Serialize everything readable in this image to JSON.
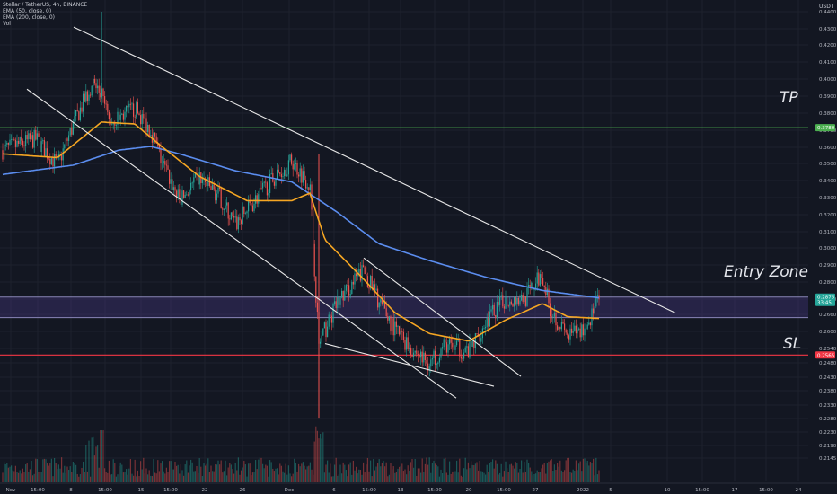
{
  "header": {
    "symbol_line": "Stellar / TetherUS, 4h, BINANCE",
    "indicators": [
      "EMA (50, close, 0)",
      "EMA (200, close, 0)",
      "Vol"
    ]
  },
  "currency": "USDT",
  "annotations": {
    "tp": "TP",
    "entry": "Entry Zone",
    "sl": "SL"
  },
  "price_labels": {
    "tp": {
      "value": "0.3780",
      "price": 0.378,
      "color": "#4caf50"
    },
    "current": {
      "value": "0.2875",
      "sub": "33:45",
      "price": 0.2875,
      "color": "#26a69a"
    },
    "sl": {
      "value": "0.2565",
      "price": 0.2565,
      "color": "#f23645"
    }
  },
  "chart_data": {
    "type": "candlestick",
    "title": "Stellar / TetherUS, 4h, BINANCE",
    "xlabel": "",
    "ylabel": "",
    "ylim": [
      0.2106,
      0.4444
    ],
    "y_ticks": [
      "0.4400",
      "0.4300",
      "0.4200",
      "0.4100",
      "0.4000",
      "0.3900",
      "0.3800",
      "0.3700",
      "0.3600",
      "0.3500",
      "0.3400",
      "0.3300",
      "0.3200",
      "0.3100",
      "0.3000",
      "0.2900",
      "0.2800",
      "0.2700",
      "0.2660",
      "0.2600",
      "0.2540",
      "0.2480",
      "0.2430",
      "0.2380",
      "0.2330",
      "0.2280",
      "0.2230",
      "0.2190",
      "0.2145"
    ],
    "x_ticks": [
      "Nov",
      "15:00",
      "8",
      "15:00",
      "15",
      "15:00",
      "22",
      "26",
      "Dec",
      "6",
      "15:00",
      "13",
      "15:00",
      "20",
      "15:00",
      "27",
      "2022",
      "5",
      "10",
      "15:00",
      "17",
      "15:00",
      "24"
    ],
    "close_path": [
      {
        "t": "Nov",
        "price": 0.366
      },
      {
        "t": "Nov 3",
        "price": 0.372
      },
      {
        "t": "Nov 5",
        "price": 0.358
      },
      {
        "t": "Nov 7",
        "price": 0.38
      },
      {
        "t": "Nov 8",
        "price": 0.402
      },
      {
        "t": "Nov 9",
        "price": 0.395
      },
      {
        "t": "Nov 10",
        "price": 0.381
      },
      {
        "t": "Nov 13",
        "price": 0.388
      },
      {
        "t": "Nov 15",
        "price": 0.377
      },
      {
        "t": "Nov 17",
        "price": 0.36
      },
      {
        "t": "Nov 19",
        "price": 0.339
      },
      {
        "t": "Nov 21",
        "price": 0.351
      },
      {
        "t": "Nov 23",
        "price": 0.342
      },
      {
        "t": "Nov 25",
        "price": 0.326
      },
      {
        "t": "Nov 27",
        "price": 0.34
      },
      {
        "t": "Nov 29",
        "price": 0.351
      },
      {
        "t": "Dec 1",
        "price": 0.36
      },
      {
        "t": "Dec 3",
        "price": 0.348
      },
      {
        "t": "Dec 4",
        "price": 0.262
      },
      {
        "t": "Dec 6",
        "price": 0.284
      },
      {
        "t": "Dec 8",
        "price": 0.302
      },
      {
        "t": "Dec 10",
        "price": 0.285
      },
      {
        "t": "Dec 12",
        "price": 0.27
      },
      {
        "t": "Dec 14",
        "price": 0.259
      },
      {
        "t": "Dec 16",
        "price": 0.252
      },
      {
        "t": "Dec 18",
        "price": 0.262
      },
      {
        "t": "Dec 20",
        "price": 0.258
      },
      {
        "t": "Dec 22",
        "price": 0.275
      },
      {
        "t": "Dec 24",
        "price": 0.286
      },
      {
        "t": "Dec 26",
        "price": 0.287
      },
      {
        "t": "Dec 28",
        "price": 0.3
      },
      {
        "t": "Dec 29",
        "price": 0.282
      },
      {
        "t": "Dec 31",
        "price": 0.266
      },
      {
        "t": "Jan 2",
        "price": 0.271
      },
      {
        "t": "Jan 3",
        "price": 0.2875
      }
    ],
    "ema50_path": [
      {
        "t": "Nov",
        "price": 0.364
      },
      {
        "t": "Nov 5",
        "price": 0.362
      },
      {
        "t": "Nov 9",
        "price": 0.381
      },
      {
        "t": "Nov 13",
        "price": 0.38
      },
      {
        "t": "Nov 17",
        "price": 0.368
      },
      {
        "t": "Nov 21",
        "price": 0.352
      },
      {
        "t": "Nov 26",
        "price": 0.339
      },
      {
        "t": "Dec 1",
        "price": 0.339
      },
      {
        "t": "Dec 3",
        "price": 0.343
      },
      {
        "t": "Dec 5",
        "price": 0.318
      },
      {
        "t": "Dec 8",
        "price": 0.297
      },
      {
        "t": "Dec 12",
        "price": 0.279
      },
      {
        "t": "Dec 16",
        "price": 0.268
      },
      {
        "t": "Dec 20",
        "price": 0.264
      },
      {
        "t": "Dec 24",
        "price": 0.275
      },
      {
        "t": "Dec 28",
        "price": 0.284
      },
      {
        "t": "Dec 31",
        "price": 0.277
      },
      {
        "t": "Jan 3",
        "price": 0.276
      }
    ],
    "ema200_path": [
      {
        "t": "Nov",
        "price": 0.353
      },
      {
        "t": "Nov 7",
        "price": 0.358
      },
      {
        "t": "Nov 11",
        "price": 0.366
      },
      {
        "t": "Nov 15",
        "price": 0.368
      },
      {
        "t": "Nov 19",
        "price": 0.364
      },
      {
        "t": "Nov 25",
        "price": 0.355
      },
      {
        "t": "Dec 1",
        "price": 0.349
      },
      {
        "t": "Dec 6",
        "price": 0.333
      },
      {
        "t": "Dec 10",
        "price": 0.316
      },
      {
        "t": "Dec 16",
        "price": 0.307
      },
      {
        "t": "Dec 22",
        "price": 0.298
      },
      {
        "t": "Dec 28",
        "price": 0.291
      },
      {
        "t": "Jan 3",
        "price": 0.287
      }
    ],
    "trendlines": [
      {
        "name": "upper-wedge",
        "from": {
          "t": "Nov 7",
          "price": 0.4318
        },
        "to": {
          "t": "Jan 10",
          "price": 0.279
        }
      },
      {
        "name": "lower-channel",
        "from": {
          "t": "Nov 2",
          "price": 0.3986
        },
        "to": {
          "t": "Dec 15",
          "price": 0.2335
        }
      },
      {
        "name": "falling-wedge-top",
        "from": {
          "t": "Dec 8",
          "price": 0.3084
        },
        "to": {
          "t": "Dec 23",
          "price": 0.2451
        }
      },
      {
        "name": "falling-wedge-bottom",
        "from": {
          "t": "Dec 5",
          "price": 0.2626
        },
        "to": {
          "t": "Dec 27",
          "price": 0.2398
        }
      }
    ],
    "levels": [
      {
        "name": "TP",
        "price": 0.378,
        "color": "#4caf50"
      },
      {
        "name": "Entry Zone",
        "top": 0.2875,
        "bottom": 0.2765,
        "color": "#4a3a8a"
      },
      {
        "name": "SL",
        "price": 0.2565,
        "color": "#f23645"
      }
    ],
    "colors": {
      "background": "#131722",
      "up": "#26a69a",
      "down": "#ef5350",
      "ema50": "#f5a623",
      "ema200": "#5b8def",
      "grid": "#1e222d",
      "trendline": "#e8e8e8"
    },
    "grid": true
  }
}
